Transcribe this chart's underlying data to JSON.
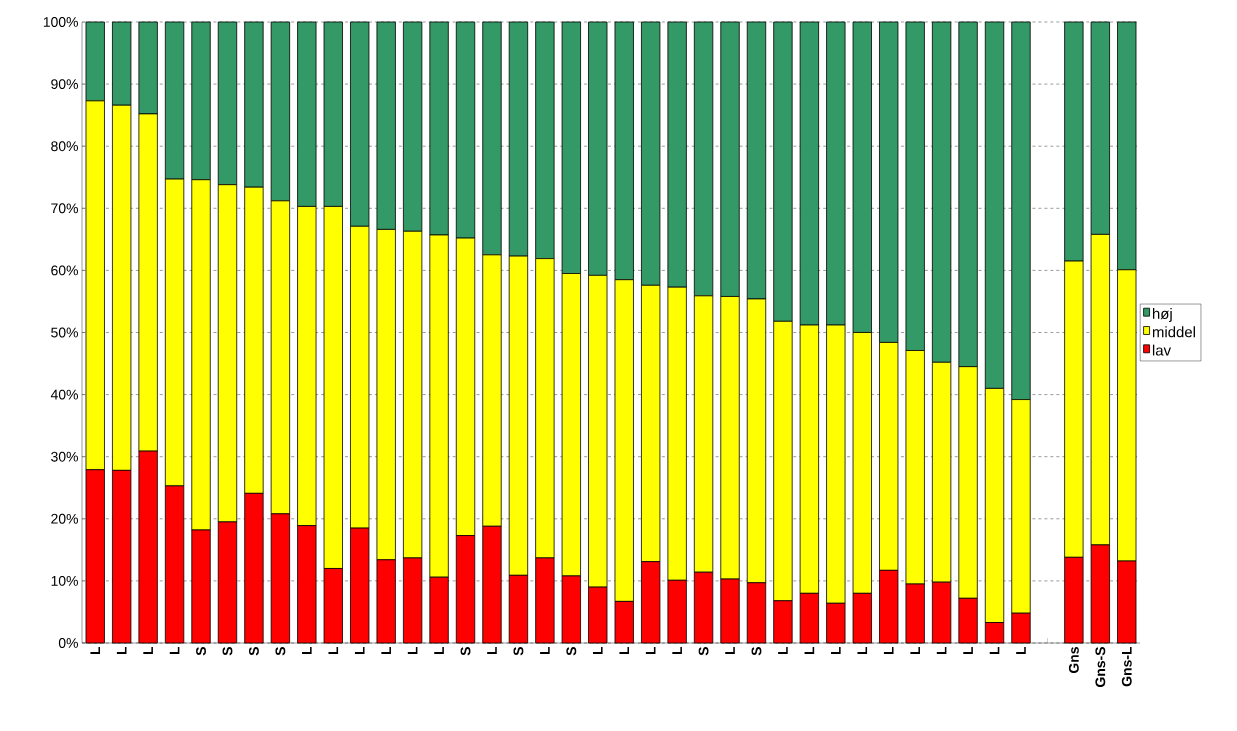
{
  "chart_data": {
    "type": "bar",
    "stacked": true,
    "categories": [
      "L",
      "L",
      "L",
      "L",
      "S",
      "S",
      "S",
      "S",
      "L",
      "L",
      "L",
      "L",
      "L",
      "L",
      "S",
      "L",
      "S",
      "L",
      "S",
      "L",
      "L",
      "L",
      "L",
      "S",
      "L",
      "S",
      "L",
      "L",
      "L",
      "L",
      "L",
      "L",
      "L",
      "L",
      "L",
      "L",
      null,
      "Gns",
      "Gns-S",
      "Gns-L"
    ],
    "series": [
      {
        "name": "lav",
        "color": "#ff0000",
        "values": [
          27.9,
          27.8,
          30.9,
          25.3,
          18.2,
          19.5,
          24.1,
          20.8,
          18.9,
          12.0,
          18.5,
          13.4,
          13.7,
          10.6,
          17.3,
          18.8,
          10.9,
          13.7,
          10.8,
          9.0,
          6.7,
          13.1,
          10.1,
          11.4,
          10.3,
          9.7,
          6.8,
          8.0,
          6.4,
          8.0,
          11.7,
          9.5,
          9.8,
          7.2,
          3.3,
          4.8,
          null,
          13.8,
          15.8,
          13.2
        ]
      },
      {
        "name": "middel",
        "color": "#ffff00",
        "values": [
          59.4,
          58.8,
          54.3,
          49.4,
          56.4,
          54.3,
          49.3,
          50.4,
          51.4,
          58.3,
          48.6,
          53.2,
          52.6,
          55.1,
          47.9,
          43.7,
          51.4,
          48.2,
          48.7,
          50.2,
          51.8,
          44.5,
          47.2,
          44.5,
          45.5,
          45.7,
          45.0,
          43.2,
          44.8,
          42.0,
          36.7,
          37.6,
          35.4,
          37.3,
          37.7,
          34.4,
          null,
          47.7,
          50.0,
          46.9
        ]
      },
      {
        "name": "høj",
        "color": "#339966",
        "values": [
          12.7,
          13.4,
          14.8,
          25.3,
          25.4,
          26.2,
          26.6,
          28.8,
          29.7,
          29.7,
          32.9,
          33.4,
          33.7,
          34.3,
          34.8,
          37.5,
          37.7,
          38.1,
          40.5,
          40.8,
          41.5,
          42.4,
          42.7,
          44.1,
          44.2,
          44.6,
          48.2,
          48.8,
          48.8,
          50.0,
          51.6,
          52.9,
          54.8,
          55.5,
          59.0,
          60.8,
          null,
          38.5,
          34.2,
          39.9
        ]
      }
    ],
    "ylim": [
      0,
      100
    ],
    "yticks": [
      {
        "value": 0,
        "label": "0%"
      },
      {
        "value": 10,
        "label": "10%"
      },
      {
        "value": 20,
        "label": "20%"
      },
      {
        "value": 30,
        "label": "30%"
      },
      {
        "value": 40,
        "label": "40%"
      },
      {
        "value": 50,
        "label": "50%"
      },
      {
        "value": 60,
        "label": "60%"
      },
      {
        "value": 70,
        "label": "70%"
      },
      {
        "value": 80,
        "label": "80%"
      },
      {
        "value": 90,
        "label": "90%"
      },
      {
        "value": 100,
        "label": "100%"
      }
    ],
    "grid": "y",
    "legend": "right"
  }
}
